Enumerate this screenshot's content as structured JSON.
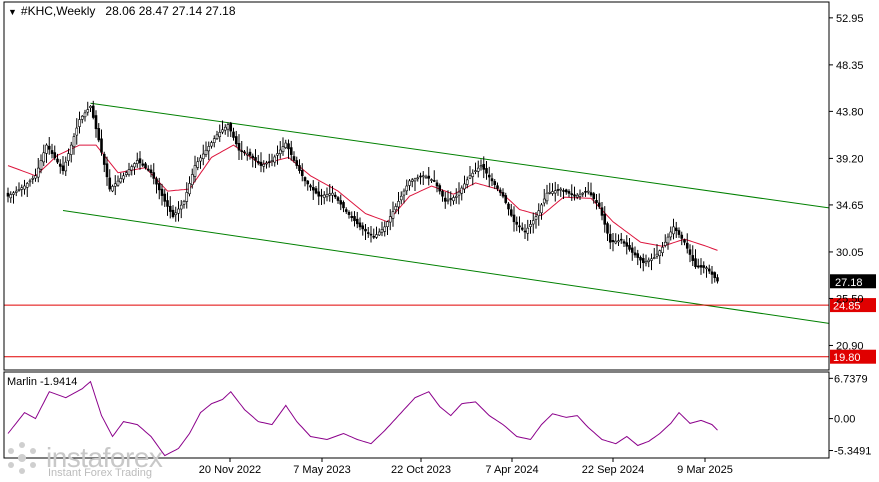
{
  "header": {
    "symbol": "#KHC,Weekly",
    "ohlc": "28.06 28.47 27.14 27.18"
  },
  "indicator": {
    "label": "Marlin -1.9414",
    "levels": [
      "6.7379",
      "0.00",
      "-5.3491"
    ]
  },
  "watermark": {
    "logo": "instaforex",
    "tagline": "Instant Forex Trading"
  },
  "colors": {
    "candle": "#000000",
    "ma_line": "#dc143c",
    "channel": "#008000",
    "hline": "#e00000",
    "marlin": "#8b008b",
    "current_price_bg": "#000000",
    "level_bg": "#e00000"
  },
  "chart_data": [
    {
      "type": "candlestick",
      "title": "#KHC,Weekly",
      "y_ticks": [
        "52.95",
        "48.35",
        "43.80",
        "39.20",
        "34.65",
        "30.05",
        "25.50",
        "20.90"
      ],
      "y_range": [
        18.5,
        54.5
      ],
      "x_ticks": [
        "20 Nov 2022",
        "7 May 2023",
        "22 Oct 2023",
        "7 Apr 2024",
        "22 Sep 2024",
        "9 Mar 2025"
      ],
      "last_price": "27.18",
      "horizontal_levels": [
        "24.85",
        "19.80"
      ],
      "anchors": [
        {
          "w": 0,
          "c": 35.5
        },
        {
          "w": 6,
          "c": 36.5
        },
        {
          "w": 10,
          "c": 37.5
        },
        {
          "w": 14,
          "c": 40.5
        },
        {
          "w": 20,
          "c": 38.0
        },
        {
          "w": 26,
          "c": 43.0
        },
        {
          "w": 30,
          "c": 44.3
        },
        {
          "w": 33,
          "c": 41.0
        },
        {
          "w": 37,
          "c": 36.2
        },
        {
          "w": 42,
          "c": 37.5
        },
        {
          "w": 47,
          "c": 39.0
        },
        {
          "w": 52,
          "c": 37.8
        },
        {
          "w": 57,
          "c": 35.0
        },
        {
          "w": 60,
          "c": 33.5
        },
        {
          "w": 64,
          "c": 35.0
        },
        {
          "w": 68,
          "c": 38.5
        },
        {
          "w": 72,
          "c": 40.0
        },
        {
          "w": 76,
          "c": 41.5
        },
        {
          "w": 80,
          "c": 42.5
        },
        {
          "w": 84,
          "c": 40.0
        },
        {
          "w": 88,
          "c": 39.5
        },
        {
          "w": 92,
          "c": 38.5
        },
        {
          "w": 96,
          "c": 39.0
        },
        {
          "w": 101,
          "c": 40.7
        },
        {
          "w": 104,
          "c": 39.0
        },
        {
          "w": 108,
          "c": 37.0
        },
        {
          "w": 113,
          "c": 35.5
        },
        {
          "w": 118,
          "c": 35.8
        },
        {
          "w": 123,
          "c": 34.0
        },
        {
          "w": 128,
          "c": 32.5
        },
        {
          "w": 133,
          "c": 31.5
        },
        {
          "w": 137,
          "c": 32.5
        },
        {
          "w": 141,
          "c": 34.5
        },
        {
          "w": 146,
          "c": 37.0
        },
        {
          "w": 151,
          "c": 37.5
        },
        {
          "w": 155,
          "c": 37.0
        },
        {
          "w": 159,
          "c": 35.0
        },
        {
          "w": 163,
          "c": 35.5
        },
        {
          "w": 168,
          "c": 37.5
        },
        {
          "w": 172,
          "c": 38.5
        },
        {
          "w": 176,
          "c": 37.0
        },
        {
          "w": 180,
          "c": 35.5
        },
        {
          "w": 184,
          "c": 33.0
        },
        {
          "w": 188,
          "c": 32.0
        },
        {
          "w": 192,
          "c": 33.5
        },
        {
          "w": 196,
          "c": 35.8
        },
        {
          "w": 201,
          "c": 36.2
        },
        {
          "w": 206,
          "c": 35.5
        },
        {
          "w": 211,
          "c": 36.0
        },
        {
          "w": 215,
          "c": 34.5
        },
        {
          "w": 219,
          "c": 31.0
        },
        {
          "w": 223,
          "c": 31.2
        },
        {
          "w": 227,
          "c": 30.0
        },
        {
          "w": 231,
          "c": 29.0
        },
        {
          "w": 235,
          "c": 29.5
        },
        {
          "w": 238,
          "c": 30.5
        },
        {
          "w": 242,
          "c": 32.5
        },
        {
          "w": 246,
          "c": 31.0
        },
        {
          "w": 250,
          "c": 28.6
        },
        {
          "w": 254,
          "c": 28.5
        },
        {
          "w": 258,
          "c": 27.2
        }
      ],
      "ma_anchors": [
        {
          "w": 0,
          "v": 38.5
        },
        {
          "w": 10,
          "v": 37.5
        },
        {
          "w": 18,
          "v": 39.5
        },
        {
          "w": 26,
          "v": 40.5
        },
        {
          "w": 32,
          "v": 40.5
        },
        {
          "w": 40,
          "v": 37.8
        },
        {
          "w": 50,
          "v": 38.3
        },
        {
          "w": 58,
          "v": 36.0
        },
        {
          "w": 66,
          "v": 36.2
        },
        {
          "w": 74,
          "v": 39.3
        },
        {
          "w": 82,
          "v": 40.5
        },
        {
          "w": 92,
          "v": 38.6
        },
        {
          "w": 102,
          "v": 39.3
        },
        {
          "w": 110,
          "v": 37.5
        },
        {
          "w": 120,
          "v": 36.0
        },
        {
          "w": 130,
          "v": 33.8
        },
        {
          "w": 138,
          "v": 33.0
        },
        {
          "w": 146,
          "v": 35.5
        },
        {
          "w": 154,
          "v": 36.5
        },
        {
          "w": 162,
          "v": 35.7
        },
        {
          "w": 170,
          "v": 36.8
        },
        {
          "w": 178,
          "v": 36.2
        },
        {
          "w": 186,
          "v": 34.2
        },
        {
          "w": 194,
          "v": 33.6
        },
        {
          "w": 202,
          "v": 35.4
        },
        {
          "w": 212,
          "v": 35.3
        },
        {
          "w": 220,
          "v": 33.0
        },
        {
          "w": 230,
          "v": 31.0
        },
        {
          "w": 238,
          "v": 30.6
        },
        {
          "w": 246,
          "v": 31.3
        },
        {
          "w": 254,
          "v": 30.6
        },
        {
          "w": 258,
          "v": 30.2
        }
      ],
      "channel_upper": [
        {
          "w": 30,
          "v": 44.6
        },
        {
          "w": 300,
          "v": 34.3
        }
      ],
      "channel_lower": [
        {
          "w": 20,
          "v": 34.1
        },
        {
          "w": 300,
          "v": 23.0
        }
      ]
    },
    {
      "type": "line",
      "title": "Marlin",
      "y_ticks": [
        "6.7379",
        "0.00",
        "-5.3491"
      ],
      "last_value": -1.9414,
      "anchors": [
        {
          "w": 0,
          "v": -2.5
        },
        {
          "w": 6,
          "v": 1.0
        },
        {
          "w": 10,
          "v": 0.0
        },
        {
          "w": 15,
          "v": 4.5
        },
        {
          "w": 21,
          "v": 3.5
        },
        {
          "w": 27,
          "v": 5.0
        },
        {
          "w": 30,
          "v": 6.2
        },
        {
          "w": 34,
          "v": 0.5
        },
        {
          "w": 38,
          "v": -3.0
        },
        {
          "w": 42,
          "v": -0.5
        },
        {
          "w": 47,
          "v": -1.0
        },
        {
          "w": 52,
          "v": -3.0
        },
        {
          "w": 57,
          "v": -6.2
        },
        {
          "w": 62,
          "v": -5.0
        },
        {
          "w": 66,
          "v": -2.5
        },
        {
          "w": 70,
          "v": 1.0
        },
        {
          "w": 74,
          "v": 2.5
        },
        {
          "w": 78,
          "v": 3.2
        },
        {
          "w": 81,
          "v": 4.5
        },
        {
          "w": 86,
          "v": 1.5
        },
        {
          "w": 91,
          "v": -0.5
        },
        {
          "w": 96,
          "v": -1.0
        },
        {
          "w": 101,
          "v": 2.2
        },
        {
          "w": 105,
          "v": -0.5
        },
        {
          "w": 110,
          "v": -3.0
        },
        {
          "w": 116,
          "v": -3.5
        },
        {
          "w": 122,
          "v": -2.5
        },
        {
          "w": 127,
          "v": -3.5
        },
        {
          "w": 132,
          "v": -4.2
        },
        {
          "w": 137,
          "v": -2.0
        },
        {
          "w": 143,
          "v": 1.0
        },
        {
          "w": 148,
          "v": 3.5
        },
        {
          "w": 153,
          "v": 4.5
        },
        {
          "w": 157,
          "v": 2.0
        },
        {
          "w": 161,
          "v": 0.5
        },
        {
          "w": 165,
          "v": 2.5
        },
        {
          "w": 170,
          "v": 2.8
        },
        {
          "w": 175,
          "v": 0.5
        },
        {
          "w": 180,
          "v": -1.0
        },
        {
          "w": 185,
          "v": -3.0
        },
        {
          "w": 190,
          "v": -3.5
        },
        {
          "w": 194,
          "v": -1.0
        },
        {
          "w": 198,
          "v": 0.8
        },
        {
          "w": 203,
          "v": 0.2
        },
        {
          "w": 207,
          "v": 0.5
        },
        {
          "w": 211,
          "v": -1.5
        },
        {
          "w": 216,
          "v": -3.5
        },
        {
          "w": 221,
          "v": -4.2
        },
        {
          "w": 225,
          "v": -3.0
        },
        {
          "w": 229,
          "v": -4.5
        },
        {
          "w": 233,
          "v": -3.8
        },
        {
          "w": 237,
          "v": -2.5
        },
        {
          "w": 241,
          "v": -0.8
        },
        {
          "w": 244,
          "v": 1.0
        },
        {
          "w": 248,
          "v": -0.8
        },
        {
          "w": 252,
          "v": -0.3
        },
        {
          "w": 256,
          "v": -1.0
        },
        {
          "w": 258,
          "v": -1.9414
        }
      ]
    }
  ]
}
